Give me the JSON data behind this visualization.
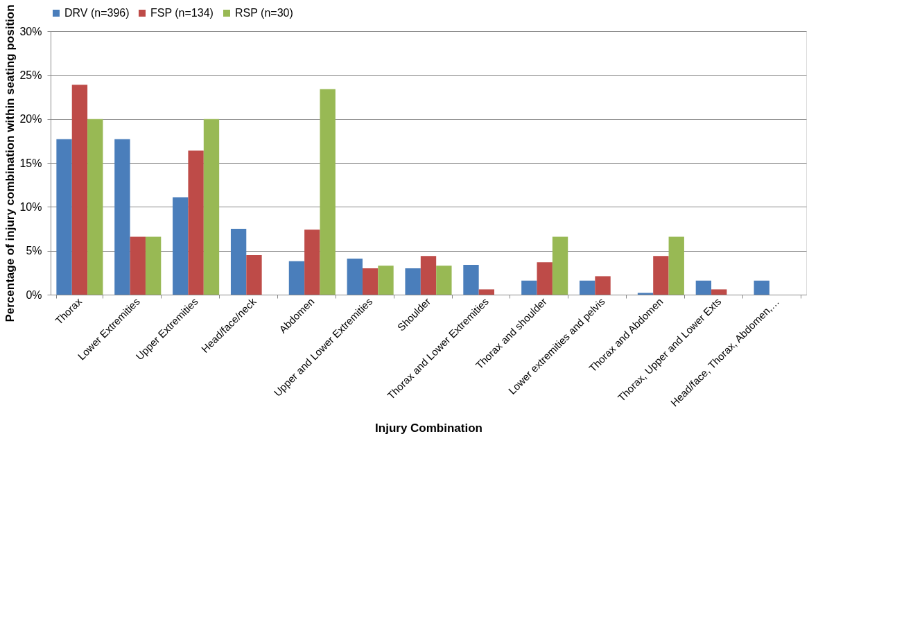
{
  "chart_data": {
    "type": "bar",
    "xlabel": "Injury Combination",
    "ylabel": "Percentage of injury combination within seating position",
    "categories": [
      "Thorax",
      "Lower Extremities",
      "Upper Extremities",
      "Head/face/neck",
      "Abdomen",
      "Upper and Lower Extremities",
      "Shoulder",
      "Thorax and Lower Extremities",
      "Thorax and shoulder",
      "Lower extremities and pelvis",
      "Thorax and Abdomen",
      "Thorax, Upper and Lower Exts",
      "Head/face, Thorax, Abdomen,…"
    ],
    "series": [
      {
        "name": "DRV (n=396)",
        "color": "#4a7ebb",
        "values": [
          17.7,
          17.7,
          11.1,
          7.5,
          3.8,
          4.1,
          3.0,
          3.4,
          1.6,
          1.6,
          0.2,
          1.6,
          1.6
        ]
      },
      {
        "name": "FSP (n=134)",
        "color": "#be4b48",
        "values": [
          23.9,
          6.6,
          16.4,
          4.5,
          7.4,
          3.0,
          4.4,
          0.6,
          3.7,
          2.1,
          4.4,
          0.6,
          null
        ]
      },
      {
        "name": "RSP (n=30)",
        "color": "#98b954",
        "values": [
          20.0,
          6.6,
          20.0,
          null,
          23.4,
          3.3,
          3.3,
          null,
          6.6,
          null,
          6.6,
          null,
          null
        ]
      }
    ],
    "ylim": [
      0,
      30
    ],
    "yticks": [
      {
        "value": 0,
        "label": "0%"
      },
      {
        "value": 5,
        "label": "5%"
      },
      {
        "value": 10,
        "label": "10%"
      },
      {
        "value": 15,
        "label": "15%"
      },
      {
        "value": 20,
        "label": "20%"
      },
      {
        "value": 25,
        "label": "25%"
      },
      {
        "value": 30,
        "label": "30%"
      }
    ],
    "grid": "y",
    "legend": "top"
  }
}
